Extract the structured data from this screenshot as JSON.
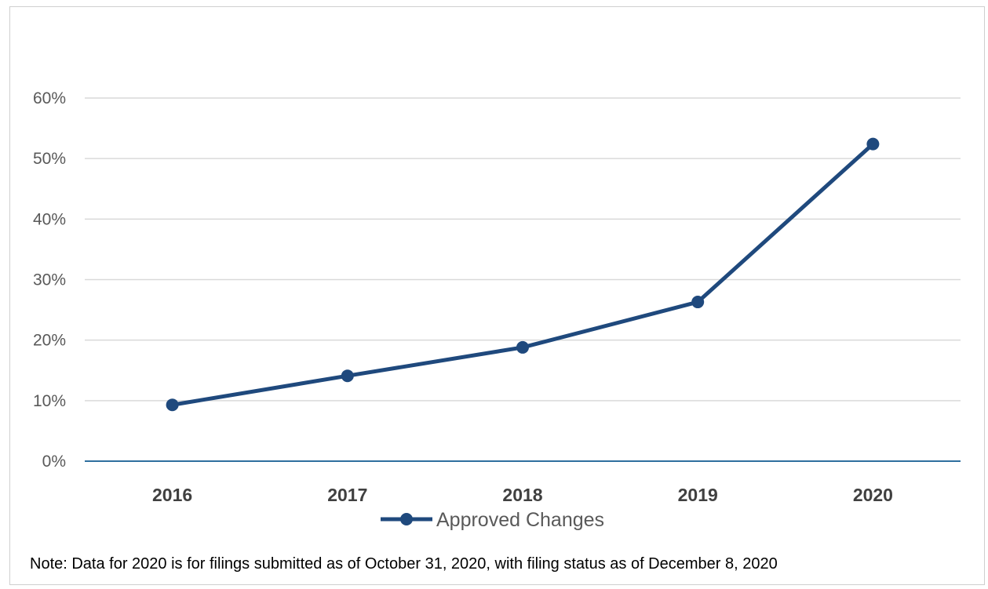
{
  "chart_data": {
    "type": "line",
    "categories": [
      "2016",
      "2017",
      "2018",
      "2019",
      "2020"
    ],
    "series": [
      {
        "name": "Approved Changes",
        "values": [
          9.3,
          14.1,
          18.8,
          26.3,
          52.4
        ]
      }
    ],
    "ylim": [
      0,
      60
    ],
    "yticks": [
      0,
      10,
      20,
      30,
      40,
      50,
      60
    ],
    "ytick_labels": [
      "0%",
      "10%",
      "20%",
      "30%",
      "40%",
      "50%",
      "60%"
    ],
    "grid": true,
    "legend_position": "bottom",
    "line_color": "#1f497d"
  },
  "note": "Note: Data for 2020 is for filings submitted as of October 31, 2020, with filing status as of December 8, 2020"
}
